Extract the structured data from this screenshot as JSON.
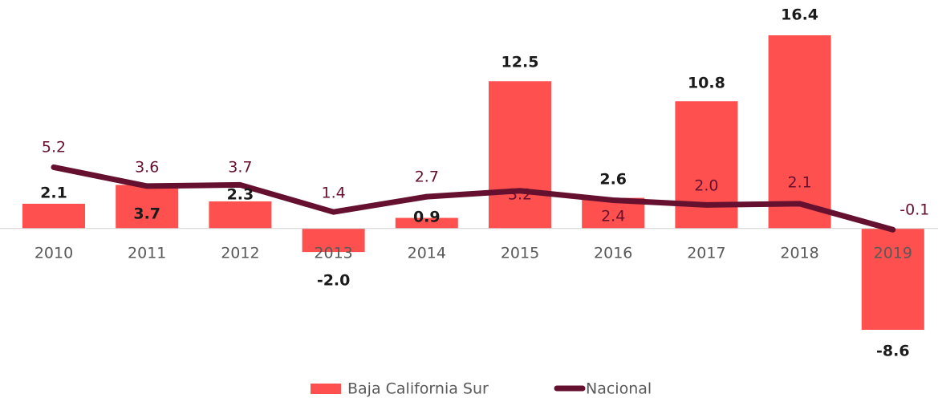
{
  "chart_data": {
    "type": "bar",
    "categories": [
      "2010",
      "2011",
      "2012",
      "2013",
      "2014",
      "2015",
      "2016",
      "2017",
      "2018",
      "2019"
    ],
    "series": [
      {
        "name": "Baja California Sur",
        "type": "bar",
        "color": "#ff5050",
        "values": [
          2.1,
          3.7,
          2.3,
          -2.0,
          0.9,
          12.5,
          2.6,
          10.8,
          16.4,
          -8.6
        ],
        "value_labels": [
          "2.1",
          "3.7",
          "2.3",
          "-2.0",
          "0.9",
          "12.5",
          "2.6",
          "10.8",
          "16.4",
          "-8.6"
        ]
      },
      {
        "name": "Nacional",
        "type": "line",
        "color": "#66102f",
        "values": [
          5.2,
          3.6,
          3.7,
          1.4,
          2.7,
          3.2,
          2.4,
          2.0,
          2.1,
          -0.1
        ],
        "value_labels": [
          "5.2",
          "3.6",
          "3.7",
          "1.4",
          "2.7",
          "3.2",
          "2.4",
          "2.0",
          "2.1",
          "-0.1"
        ]
      }
    ],
    "legend": "bottom"
  }
}
